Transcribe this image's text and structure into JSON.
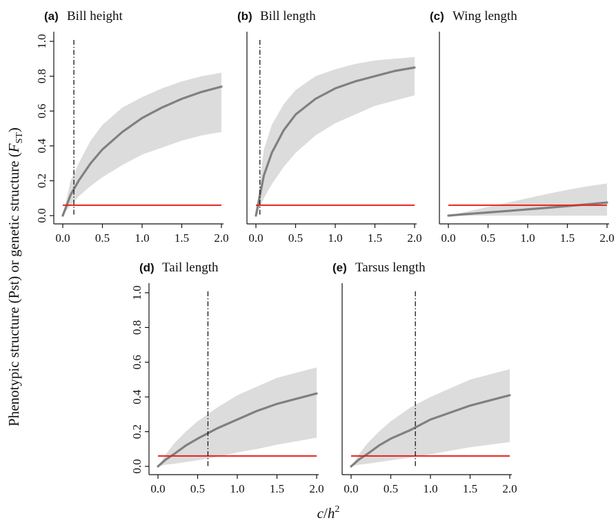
{
  "figure": {
    "ylabel": {
      "main": "Phenotypic structure (Pst) or genetic structure (",
      "italic": "F",
      "subscript": "ST",
      "close": ")"
    },
    "xlabel": {
      "c": "c",
      "slash": "/",
      "h": "h",
      "sup": "2"
    }
  },
  "chart_data": [
    {
      "type": "line",
      "letter": "(a)",
      "title": "Bill height",
      "xlim": [
        0,
        2
      ],
      "ylim": [
        0,
        1
      ],
      "x_ticks": [
        "0.0",
        "0.5",
        "1.0",
        "1.5",
        "2.0"
      ],
      "y_ticks": [
        "0.0",
        "0.2",
        "0.4",
        "0.6",
        "0.8",
        "1.0"
      ],
      "show_y_ticks": true,
      "x": [
        0,
        0.1,
        0.2,
        0.35,
        0.5,
        0.75,
        1.0,
        1.25,
        1.5,
        1.75,
        2.0
      ],
      "series": [
        {
          "role": "pst_mean",
          "color": "#808080",
          "values": [
            0.0,
            0.12,
            0.2,
            0.3,
            0.38,
            0.48,
            0.56,
            0.62,
            0.67,
            0.71,
            0.74
          ]
        },
        {
          "role": "ci_lower",
          "color": "#dcdcdc",
          "values": [
            0.0,
            0.06,
            0.11,
            0.17,
            0.22,
            0.29,
            0.35,
            0.39,
            0.43,
            0.46,
            0.48
          ]
        },
        {
          "role": "ci_upper",
          "color": "#dcdcdc",
          "values": [
            0.0,
            0.2,
            0.3,
            0.43,
            0.52,
            0.62,
            0.68,
            0.73,
            0.77,
            0.8,
            0.82
          ]
        }
      ],
      "fst": 0.06,
      "fst_color": "#e8211d",
      "critical_x": 0.14
    },
    {
      "type": "line",
      "letter": "(b)",
      "title": "Bill length",
      "xlim": [
        0,
        2
      ],
      "ylim": [
        0,
        1
      ],
      "x_ticks": [
        "0.0",
        "0.5",
        "1.0",
        "1.5",
        "2.0"
      ],
      "y_ticks": [
        "0.0",
        "0.2",
        "0.4",
        "0.6",
        "0.8",
        "1.0"
      ],
      "show_y_ticks": false,
      "x": [
        0,
        0.1,
        0.2,
        0.35,
        0.5,
        0.75,
        1.0,
        1.25,
        1.5,
        1.75,
        2.0
      ],
      "series": [
        {
          "role": "pst_mean",
          "color": "#808080",
          "values": [
            0.0,
            0.23,
            0.36,
            0.49,
            0.58,
            0.67,
            0.73,
            0.77,
            0.8,
            0.83,
            0.85
          ]
        },
        {
          "role": "ci_lower",
          "color": "#dcdcdc",
          "values": [
            0.0,
            0.1,
            0.18,
            0.28,
            0.36,
            0.46,
            0.53,
            0.58,
            0.63,
            0.66,
            0.69
          ]
        },
        {
          "role": "ci_upper",
          "color": "#dcdcdc",
          "values": [
            0.0,
            0.38,
            0.52,
            0.64,
            0.72,
            0.8,
            0.84,
            0.87,
            0.89,
            0.9,
            0.91
          ]
        }
      ],
      "fst": 0.06,
      "fst_color": "#e8211d",
      "critical_x": 0.05
    },
    {
      "type": "line",
      "letter": "(c)",
      "title": "Wing length",
      "xlim": [
        0,
        2
      ],
      "ylim": [
        0,
        1
      ],
      "x_ticks": [
        "0.0",
        "0.5",
        "1.0",
        "1.5",
        "2.0"
      ],
      "y_ticks": [
        "0.0",
        "0.2",
        "0.4",
        "0.6",
        "0.8",
        "1.0"
      ],
      "show_y_ticks": false,
      "x": [
        0,
        0.1,
        0.2,
        0.35,
        0.5,
        0.75,
        1.0,
        1.25,
        1.5,
        1.75,
        2.0
      ],
      "series": [
        {
          "role": "pst_mean",
          "color": "#808080",
          "values": [
            0.0,
            0.004,
            0.008,
            0.013,
            0.018,
            0.027,
            0.036,
            0.045,
            0.055,
            0.065,
            0.075
          ]
        },
        {
          "role": "ci_lower",
          "color": "#dcdcdc",
          "values": [
            0.0,
            0.0,
            0.0,
            0.0,
            0.0,
            0.0,
            0.0,
            0.0,
            0.0,
            0.0,
            0.0
          ]
        },
        {
          "role": "ci_upper",
          "color": "#dcdcdc",
          "values": [
            0.0,
            0.01,
            0.02,
            0.035,
            0.05,
            0.075,
            0.1,
            0.125,
            0.148,
            0.168,
            0.185
          ]
        }
      ],
      "fst": 0.06,
      "fst_color": "#e8211d",
      "critical_x": null
    },
    {
      "type": "line",
      "letter": "(d)",
      "title": "Tail length",
      "xlim": [
        0,
        2
      ],
      "ylim": [
        0,
        1
      ],
      "x_ticks": [
        "0.0",
        "0.5",
        "1.0",
        "1.5",
        "2.0"
      ],
      "y_ticks": [
        "0.0",
        "0.2",
        "0.4",
        "0.6",
        "0.8",
        "1.0"
      ],
      "show_y_ticks": true,
      "x": [
        0,
        0.1,
        0.2,
        0.35,
        0.5,
        0.75,
        1.0,
        1.25,
        1.5,
        1.75,
        2.0
      ],
      "series": [
        {
          "role": "pst_mean",
          "color": "#808080",
          "values": [
            0.0,
            0.04,
            0.07,
            0.12,
            0.16,
            0.22,
            0.27,
            0.32,
            0.36,
            0.39,
            0.42
          ]
        },
        {
          "role": "ci_lower",
          "color": "#dcdcdc",
          "values": [
            0.0,
            0.01,
            0.015,
            0.025,
            0.035,
            0.055,
            0.08,
            0.1,
            0.125,
            0.145,
            0.165
          ]
        },
        {
          "role": "ci_upper",
          "color": "#dcdcdc",
          "values": [
            0.0,
            0.07,
            0.13,
            0.2,
            0.26,
            0.34,
            0.41,
            0.46,
            0.51,
            0.54,
            0.57
          ]
        }
      ],
      "fst": 0.06,
      "fst_color": "#e8211d",
      "critical_x": 0.63
    },
    {
      "type": "line",
      "letter": "(e)",
      "title": "Tarsus length",
      "xlim": [
        0,
        2
      ],
      "ylim": [
        0,
        1
      ],
      "x_ticks": [
        "0.0",
        "0.5",
        "1.0",
        "1.5",
        "2.0"
      ],
      "y_ticks": [
        "0.0",
        "0.2",
        "0.4",
        "0.6",
        "0.8",
        "1.0"
      ],
      "show_y_ticks": false,
      "x": [
        0,
        0.1,
        0.2,
        0.35,
        0.5,
        0.75,
        1.0,
        1.25,
        1.5,
        1.75,
        2.0
      ],
      "series": [
        {
          "role": "pst_mean",
          "color": "#808080",
          "values": [
            0.0,
            0.04,
            0.07,
            0.12,
            0.16,
            0.21,
            0.27,
            0.31,
            0.35,
            0.38,
            0.41
          ]
        },
        {
          "role": "ci_lower",
          "color": "#dcdcdc",
          "values": [
            0.0,
            0.01,
            0.015,
            0.025,
            0.035,
            0.05,
            0.07,
            0.09,
            0.11,
            0.125,
            0.14
          ]
        },
        {
          "role": "ci_upper",
          "color": "#dcdcdc",
          "values": [
            0.0,
            0.07,
            0.13,
            0.2,
            0.26,
            0.34,
            0.4,
            0.45,
            0.5,
            0.53,
            0.56
          ]
        }
      ],
      "fst": 0.06,
      "fst_color": "#e8211d",
      "critical_x": 0.81
    }
  ]
}
